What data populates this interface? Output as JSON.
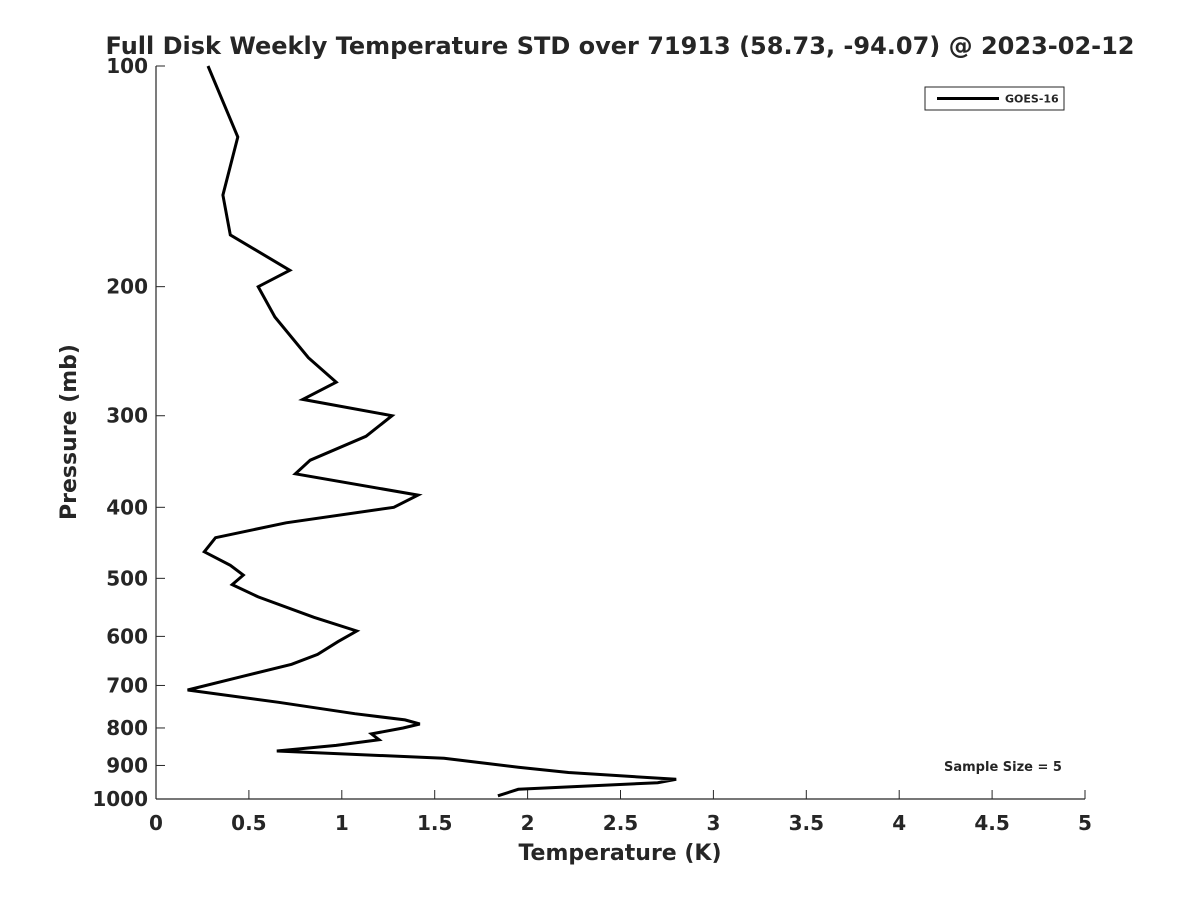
{
  "chart_data": {
    "type": "line",
    "title": "Full Disk Weekly Temperature STD over 71913 (58.73, -94.07) @ 2023-02-12",
    "xlabel": "Temperature (K)",
    "ylabel": "Pressure (mb)",
    "xlim": [
      0,
      5
    ],
    "ylim": [
      100,
      1000
    ],
    "y_scale": "log",
    "y_reversed": true,
    "x_ticks": [
      "0",
      "0.5",
      "1",
      "1.5",
      "2",
      "2.5",
      "3",
      "3.5",
      "4",
      "4.5",
      "5"
    ],
    "y_ticks": [
      "100",
      "200",
      "300",
      "400",
      "500",
      "600",
      "700",
      "800",
      "900",
      "1000"
    ],
    "grid": false,
    "legend_position": "top-right",
    "annotation": "Sample Size = 5",
    "series": [
      {
        "name": "GOES-16",
        "color": "#000000",
        "points": [
          [
            0.28,
            100
          ],
          [
            0.44,
            125
          ],
          [
            0.36,
            150
          ],
          [
            0.4,
            170
          ],
          [
            0.72,
            190
          ],
          [
            0.55,
            200
          ],
          [
            0.64,
            220
          ],
          [
            0.82,
            250
          ],
          [
            0.97,
            270
          ],
          [
            0.79,
            285
          ],
          [
            1.27,
            300
          ],
          [
            1.13,
            320
          ],
          [
            0.83,
            345
          ],
          [
            0.75,
            360
          ],
          [
            1.41,
            385
          ],
          [
            1.28,
            400
          ],
          [
            0.7,
            420
          ],
          [
            0.32,
            440
          ],
          [
            0.26,
            460
          ],
          [
            0.4,
            480
          ],
          [
            0.47,
            495
          ],
          [
            0.41,
            510
          ],
          [
            0.55,
            530
          ],
          [
            0.85,
            565
          ],
          [
            1.08,
            590
          ],
          [
            0.98,
            610
          ],
          [
            0.87,
            635
          ],
          [
            0.73,
            655
          ],
          [
            0.47,
            680
          ],
          [
            0.17,
            710
          ],
          [
            0.66,
            738
          ],
          [
            1.07,
            765
          ],
          [
            1.34,
            780
          ],
          [
            1.42,
            790
          ],
          [
            1.33,
            800
          ],
          [
            1.16,
            815
          ],
          [
            1.2,
            830
          ],
          [
            0.97,
            845
          ],
          [
            0.65,
            860
          ],
          [
            1.55,
            880
          ],
          [
            1.95,
            905
          ],
          [
            2.22,
            920
          ],
          [
            2.8,
            940
          ],
          [
            2.7,
            950
          ],
          [
            1.95,
            970
          ],
          [
            1.84,
            990
          ]
        ]
      }
    ]
  }
}
